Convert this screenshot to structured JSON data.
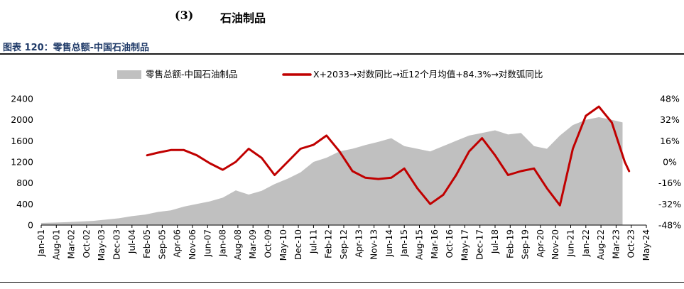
{
  "header": {
    "section_number": "(3)",
    "section_title": "石油制品",
    "figure_caption": "图表 120：零售总额-中国石油制品"
  },
  "chart_data": {
    "type": "area+line",
    "title": "",
    "xlabel": "",
    "ylabel": "",
    "legend_position": "top",
    "grid": false,
    "x_tick_labels": [
      "Jan-01",
      "Aug-01",
      "Mar-02",
      "Oct-02",
      "May-03",
      "Dec-03",
      "Jul-04",
      "Feb-05",
      "Sep-05",
      "Apr-06",
      "Nov-06",
      "Jun-07",
      "Jan-08",
      "Aug-08",
      "Mar-09",
      "Oct-09",
      "May-10",
      "Dec-10",
      "Jul-11",
      "Feb-12",
      "Sep-12",
      "Apr-13",
      "Nov-13",
      "Jun-14",
      "Jan-15",
      "Aug-15",
      "Mar-16",
      "Oct-16",
      "May-17",
      "Dec-17",
      "Jul-18",
      "Feb-19",
      "Sep-19",
      "Apr-20",
      "Nov-20",
      "Jun-21",
      "Jan-22",
      "Aug-22",
      "Mar-23",
      "Oct-23",
      "May-24"
    ],
    "left_axis": {
      "min": 0,
      "max": 2400,
      "ticks": [
        "0",
        "400",
        "800",
        "1200",
        "1600",
        "2000",
        "2400"
      ]
    },
    "right_axis": {
      "min": -48,
      "max": 48,
      "ticks": [
        "-48%",
        "-32%",
        "-16%",
        "0%",
        "16%",
        "32%",
        "48%"
      ]
    },
    "series": [
      {
        "name": "零售总额-中国石油制品",
        "axis": "left",
        "color": "#c0c0c0",
        "points": [
          [
            "Jan-01",
            40
          ],
          [
            "Jan-02",
            55
          ],
          [
            "Jan-03",
            80
          ],
          [
            "Jan-04",
            130
          ],
          [
            "Jul-04",
            170
          ],
          [
            "Jan-05",
            200
          ],
          [
            "Jul-05",
            250
          ],
          [
            "Jan-06",
            280
          ],
          [
            "Jul-06",
            350
          ],
          [
            "Jan-07",
            400
          ],
          [
            "Jul-07",
            450
          ],
          [
            "Jan-08",
            520
          ],
          [
            "Jul-08",
            660
          ],
          [
            "Jan-09",
            580
          ],
          [
            "Jul-09",
            650
          ],
          [
            "Jan-10",
            780
          ],
          [
            "Jul-10",
            880
          ],
          [
            "Jan-11",
            1000
          ],
          [
            "Jul-11",
            1200
          ],
          [
            "Jan-12",
            1280
          ],
          [
            "Jul-12",
            1400
          ],
          [
            "Jan-13",
            1450
          ],
          [
            "Jul-13",
            1520
          ],
          [
            "Jan-14",
            1580
          ],
          [
            "Jul-14",
            1650
          ],
          [
            "Jan-15",
            1500
          ],
          [
            "Jul-15",
            1450
          ],
          [
            "Jan-16",
            1400
          ],
          [
            "Jul-16",
            1500
          ],
          [
            "Jan-17",
            1600
          ],
          [
            "Jul-17",
            1700
          ],
          [
            "Jan-18",
            1750
          ],
          [
            "Jul-18",
            1800
          ],
          [
            "Jan-19",
            1720
          ],
          [
            "Jul-19",
            1750
          ],
          [
            "Jan-20",
            1500
          ],
          [
            "Jul-20",
            1450
          ],
          [
            "Jan-21",
            1700
          ],
          [
            "Jul-21",
            1900
          ],
          [
            "Jan-22",
            2000
          ],
          [
            "Jul-22",
            2050
          ],
          [
            "Jan-23",
            2000
          ],
          [
            "Jun-23",
            1950
          ]
        ]
      },
      {
        "name": "X+2033→对数同比→近12个月均值+84.3%→对数弧同比",
        "axis": "right",
        "color": "#c00000",
        "points": [
          [
            "Feb-05",
            5
          ],
          [
            "Jul-05",
            7
          ],
          [
            "Jan-06",
            9
          ],
          [
            "Jul-06",
            9
          ],
          [
            "Jan-07",
            5
          ],
          [
            "Jul-07",
            -1
          ],
          [
            "Jan-08",
            -6
          ],
          [
            "Jul-08",
            0
          ],
          [
            "Jan-09",
            10
          ],
          [
            "Jul-09",
            3
          ],
          [
            "Jan-10",
            -10
          ],
          [
            "Jul-10",
            0
          ],
          [
            "Jan-11",
            10
          ],
          [
            "Jul-11",
            13
          ],
          [
            "Jan-12",
            20
          ],
          [
            "Jul-12",
            8
          ],
          [
            "Jan-13",
            -7
          ],
          [
            "Jul-13",
            -12
          ],
          [
            "Jan-14",
            -13
          ],
          [
            "Jul-14",
            -12
          ],
          [
            "Jan-15",
            -5
          ],
          [
            "Jul-15",
            -20
          ],
          [
            "Jan-16",
            -32
          ],
          [
            "Jul-16",
            -25
          ],
          [
            "Jan-17",
            -10
          ],
          [
            "Jul-17",
            8
          ],
          [
            "Jan-18",
            18
          ],
          [
            "Jul-18",
            5
          ],
          [
            "Jan-19",
            -10
          ],
          [
            "Jul-19",
            -7
          ],
          [
            "Jan-20",
            -5
          ],
          [
            "Jul-20",
            -20
          ],
          [
            "Jan-21",
            -33
          ],
          [
            "Jul-21",
            10
          ],
          [
            "Jan-22",
            35
          ],
          [
            "Jul-22",
            42
          ],
          [
            "Jan-23",
            30
          ],
          [
            "Jul-23",
            0
          ],
          [
            "Sep-23",
            -7
          ]
        ]
      }
    ]
  }
}
